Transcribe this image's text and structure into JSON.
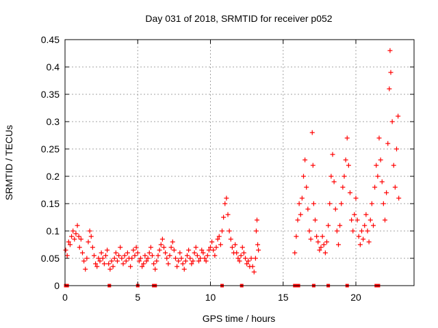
{
  "chart_data": {
    "type": "scatter",
    "title": "Day 031 of 2018, SRMTID for receiver p052",
    "xlabel": "GPS time / hours",
    "ylabel": "SRMTID / TECUs",
    "xlim": [
      0,
      24
    ],
    "ylim": [
      0,
      0.45
    ],
    "x_ticks": [
      0,
      5,
      10,
      15,
      20
    ],
    "x_tick_labels": [
      "0",
      "5",
      "10",
      "15",
      "20"
    ],
    "y_ticks": [
      0,
      0.05,
      0.1,
      0.15,
      0.2,
      0.25,
      0.3,
      0.35,
      0.4,
      0.45
    ],
    "y_tick_labels": [
      "0",
      "0.05",
      "0.1",
      "0.15",
      "0.2",
      "0.25",
      "0.3",
      "0.35",
      "0.4",
      "0.45"
    ],
    "grid": true,
    "marker": "+",
    "color": "#ff0000",
    "series": [
      {
        "name": "SRMTID",
        "points": [
          [
            0.05,
            0.065
          ],
          [
            0.15,
            0.055
          ],
          [
            0.25,
            0.08
          ],
          [
            0.35,
            0.075
          ],
          [
            0.45,
            0.09
          ],
          [
            0.55,
            0.1
          ],
          [
            0.65,
            0.085
          ],
          [
            0.75,
            0.095
          ],
          [
            0.85,
            0.11
          ],
          [
            0.95,
            0.09
          ],
          [
            1.0,
            0.07
          ],
          [
            1.1,
            0.085
          ],
          [
            1.2,
            0.06
          ],
          [
            1.3,
            0.045
          ],
          [
            1.4,
            0.03
          ],
          [
            1.5,
            0.05
          ],
          [
            1.6,
            0.08
          ],
          [
            1.7,
            0.1
          ],
          [
            1.8,
            0.09
          ],
          [
            1.9,
            0.07
          ],
          [
            2.0,
            0.055
          ],
          [
            2.1,
            0.04
          ],
          [
            2.2,
            0.035
          ],
          [
            2.3,
            0.05
          ],
          [
            2.4,
            0.045
          ],
          [
            2.5,
            0.06
          ],
          [
            2.6,
            0.05
          ],
          [
            2.7,
            0.04
          ],
          [
            2.8,
            0.055
          ],
          [
            2.9,
            0.065
          ],
          [
            3.0,
            0.04
          ],
          [
            3.1,
            0.03
          ],
          [
            3.2,
            0.045
          ],
          [
            3.3,
            0.035
          ],
          [
            3.4,
            0.05
          ],
          [
            3.5,
            0.06
          ],
          [
            3.6,
            0.045
          ],
          [
            3.7,
            0.055
          ],
          [
            3.8,
            0.07
          ],
          [
            3.9,
            0.05
          ],
          [
            4.0,
            0.04
          ],
          [
            4.1,
            0.055
          ],
          [
            4.2,
            0.045
          ],
          [
            4.3,
            0.06
          ],
          [
            4.4,
            0.05
          ],
          [
            4.5,
            0.035
          ],
          [
            4.6,
            0.05
          ],
          [
            4.7,
            0.065
          ],
          [
            4.8,
            0.055
          ],
          [
            4.9,
            0.07
          ],
          [
            5.0,
            0.06
          ],
          [
            5.1,
            0.045
          ],
          [
            5.2,
            0.05
          ],
          [
            5.3,
            0.035
          ],
          [
            5.4,
            0.04
          ],
          [
            5.5,
            0.055
          ],
          [
            5.6,
            0.045
          ],
          [
            5.7,
            0.05
          ],
          [
            5.8,
            0.06
          ],
          [
            5.9,
            0.07
          ],
          [
            6.0,
            0.055
          ],
          [
            6.1,
            0.04
          ],
          [
            6.2,
            0.03
          ],
          [
            6.3,
            0.045
          ],
          [
            6.4,
            0.055
          ],
          [
            6.5,
            0.065
          ],
          [
            6.6,
            0.075
          ],
          [
            6.7,
            0.085
          ],
          [
            6.8,
            0.07
          ],
          [
            6.9,
            0.06
          ],
          [
            7.0,
            0.05
          ],
          [
            7.1,
            0.04
          ],
          [
            7.2,
            0.055
          ],
          [
            7.3,
            0.07
          ],
          [
            7.4,
            0.08
          ],
          [
            7.5,
            0.065
          ],
          [
            7.6,
            0.05
          ],
          [
            7.7,
            0.035
          ],
          [
            7.8,
            0.045
          ],
          [
            7.9,
            0.06
          ],
          [
            8.0,
            0.05
          ],
          [
            8.1,
            0.04
          ],
          [
            8.2,
            0.03
          ],
          [
            8.3,
            0.045
          ],
          [
            8.4,
            0.055
          ],
          [
            8.5,
            0.065
          ],
          [
            8.6,
            0.05
          ],
          [
            8.7,
            0.04
          ],
          [
            8.8,
            0.045
          ],
          [
            8.9,
            0.06
          ],
          [
            9.0,
            0.07
          ],
          [
            9.1,
            0.055
          ],
          [
            9.2,
            0.045
          ],
          [
            9.3,
            0.05
          ],
          [
            9.4,
            0.065
          ],
          [
            9.5,
            0.06
          ],
          [
            9.6,
            0.05
          ],
          [
            9.7,
            0.045
          ],
          [
            9.8,
            0.055
          ],
          [
            9.9,
            0.065
          ],
          [
            10.0,
            0.07
          ],
          [
            10.1,
            0.08
          ],
          [
            10.2,
            0.065
          ],
          [
            10.3,
            0.055
          ],
          [
            10.4,
            0.07
          ],
          [
            10.5,
            0.085
          ],
          [
            10.6,
            0.09
          ],
          [
            10.7,
            0.075
          ],
          [
            10.8,
            0.1
          ],
          [
            10.9,
            0.125
          ],
          [
            11.0,
            0.15
          ],
          [
            11.1,
            0.16
          ],
          [
            11.2,
            0.13
          ],
          [
            11.3,
            0.1
          ],
          [
            11.4,
            0.085
          ],
          [
            11.5,
            0.07
          ],
          [
            11.6,
            0.06
          ],
          [
            11.7,
            0.075
          ],
          [
            11.8,
            0.06
          ],
          [
            11.9,
            0.05
          ],
          [
            12.0,
            0.045
          ],
          [
            12.1,
            0.055
          ],
          [
            12.2,
            0.07
          ],
          [
            12.3,
            0.06
          ],
          [
            12.4,
            0.05
          ],
          [
            12.5,
            0.04
          ],
          [
            12.6,
            0.045
          ],
          [
            12.7,
            0.035
          ],
          [
            12.8,
            0.05
          ],
          [
            12.9,
            0.035
          ],
          [
            13.0,
            0.025
          ],
          [
            13.1,
            0.05
          ],
          [
            13.15,
            0.1
          ],
          [
            13.2,
            0.12
          ],
          [
            13.25,
            0.075
          ],
          [
            13.3,
            0.065
          ],
          [
            15.8,
            0.06
          ],
          [
            15.9,
            0.09
          ],
          [
            16.0,
            0.12
          ],
          [
            16.1,
            0.15
          ],
          [
            16.2,
            0.13
          ],
          [
            16.3,
            0.16
          ],
          [
            16.4,
            0.2
          ],
          [
            16.5,
            0.23
          ],
          [
            16.6,
            0.18
          ],
          [
            16.7,
            0.14
          ],
          [
            16.8,
            0.1
          ],
          [
            16.9,
            0.085
          ],
          [
            17.0,
            0.28
          ],
          [
            17.05,
            0.22
          ],
          [
            17.1,
            0.15
          ],
          [
            17.2,
            0.12
          ],
          [
            17.3,
            0.09
          ],
          [
            17.4,
            0.08
          ],
          [
            17.5,
            0.065
          ],
          [
            17.6,
            0.07
          ],
          [
            17.7,
            0.09
          ],
          [
            17.8,
            0.075
          ],
          [
            17.9,
            0.06
          ],
          [
            18.0,
            0.08
          ],
          [
            18.1,
            0.11
          ],
          [
            18.2,
            0.15
          ],
          [
            18.3,
            0.2
          ],
          [
            18.4,
            0.24
          ],
          [
            18.5,
            0.19
          ],
          [
            18.6,
            0.14
          ],
          [
            18.7,
            0.1
          ],
          [
            18.8,
            0.075
          ],
          [
            18.9,
            0.11
          ],
          [
            19.0,
            0.15
          ],
          [
            19.1,
            0.18
          ],
          [
            19.2,
            0.2
          ],
          [
            19.3,
            0.23
          ],
          [
            19.4,
            0.27
          ],
          [
            19.5,
            0.22
          ],
          [
            19.6,
            0.17
          ],
          [
            19.7,
            0.12
          ],
          [
            19.8,
            0.1
          ],
          [
            19.9,
            0.13
          ],
          [
            20.0,
            0.16
          ],
          [
            20.1,
            0.12
          ],
          [
            20.2,
            0.09
          ],
          [
            20.3,
            0.075
          ],
          [
            20.4,
            0.1
          ],
          [
            20.5,
            0.085
          ],
          [
            20.6,
            0.11
          ],
          [
            20.7,
            0.13
          ],
          [
            20.8,
            0.1
          ],
          [
            20.9,
            0.08
          ],
          [
            21.0,
            0.12
          ],
          [
            21.1,
            0.15
          ],
          [
            21.2,
            0.11
          ],
          [
            21.3,
            0.18
          ],
          [
            21.4,
            0.22
          ],
          [
            21.5,
            0.2
          ],
          [
            21.6,
            0.27
          ],
          [
            21.7,
            0.23
          ],
          [
            21.8,
            0.19
          ],
          [
            21.9,
            0.15
          ],
          [
            22.0,
            0.12
          ],
          [
            22.1,
            0.17
          ],
          [
            22.2,
            0.26
          ],
          [
            22.3,
            0.36
          ],
          [
            22.35,
            0.43
          ],
          [
            22.4,
            0.39
          ],
          [
            22.5,
            0.3
          ],
          [
            22.6,
            0.22
          ],
          [
            22.7,
            0.18
          ],
          [
            22.8,
            0.25
          ],
          [
            22.9,
            0.31
          ],
          [
            22.95,
            0.16
          ]
        ],
        "zero_markers": [
          0.05,
          0.15,
          3.05,
          5.0,
          6.1,
          6.2,
          10.8,
          12.15,
          15.8,
          15.9,
          16.05,
          17.1,
          18.1,
          19.4,
          21.4,
          21.55
        ]
      }
    ]
  }
}
